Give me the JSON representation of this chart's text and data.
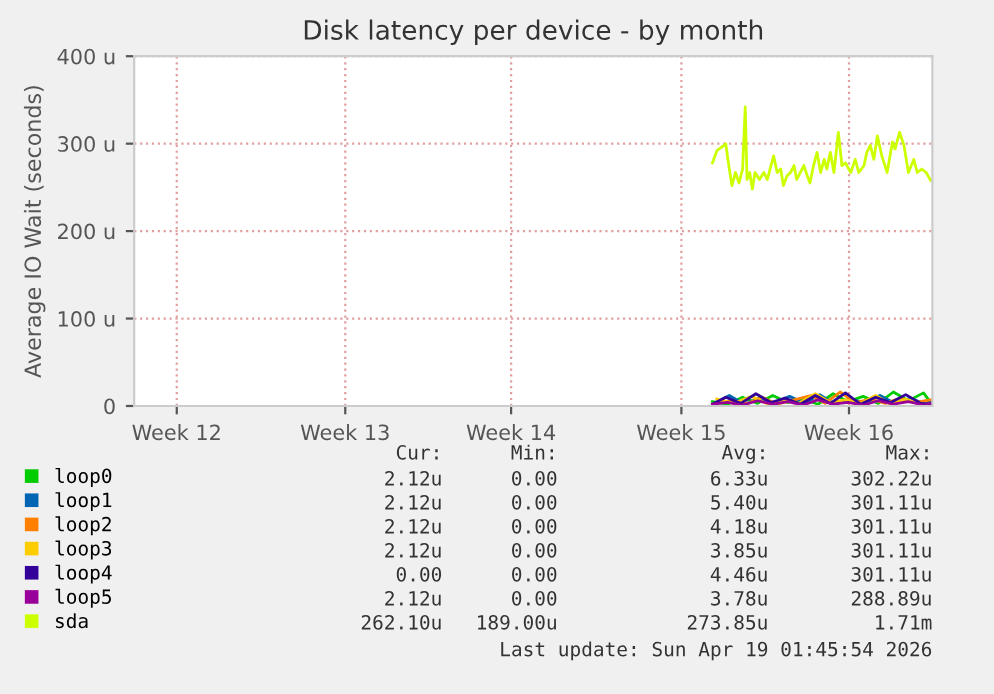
{
  "chart_data": {
    "type": "line",
    "title": "Disk latency per device - by month",
    "ylabel": "Average IO Wait (seconds)",
    "xlim": [
      "2026-03-12T12:00",
      "2026-04-19T00:00"
    ],
    "xticks": [
      {
        "value": "2026-03-14T12:00",
        "label": "Week 12"
      },
      {
        "value": "2026-03-22T10:00",
        "label": "Week 13"
      },
      {
        "value": "2026-03-30T05:00",
        "label": "Week 14"
      },
      {
        "value": "2026-04-07T05:00",
        "label": "Week 15"
      },
      {
        "value": "2026-04-15T02:00",
        "label": "Week 16"
      }
    ],
    "ylim": [
      0,
      400
    ],
    "yticks": [
      0,
      {
        "value": 100,
        "label": "100 u"
      },
      {
        "value": 200,
        "label": "200 u"
      },
      {
        "value": 300,
        "label": "300 u"
      },
      {
        "value": 400,
        "label": "400 u"
      }
    ],
    "grid": true,
    "legend": "bottom left",
    "series": [
      {
        "name": "loop0",
        "color": "#00cc00",
        "x": [
          "2026-04-08T16:00",
          "2026-04-09T09:00",
          "2026-04-10T02:00",
          "2026-04-10T19:00",
          "2026-04-11T12:00",
          "2026-04-12T05:00",
          "2026-04-12T22:00",
          "2026-04-13T15:00",
          "2026-04-14T08:00",
          "2026-04-15T01:00",
          "2026-04-15T18:00",
          "2026-04-16T11:00",
          "2026-04-17T04:00",
          "2026-04-17T21:00",
          "2026-04-18T14:00",
          "2026-04-18T22:00"
        ],
        "values": [
          5,
          2,
          10,
          3,
          12,
          4,
          8,
          2,
          14,
          5,
          11,
          3,
          16,
          6,
          15,
          4
        ]
      },
      {
        "name": "loop1",
        "color": "#0066b3",
        "x": [
          "2026-04-08T18:00",
          "2026-04-09T11:00",
          "2026-04-10T04:00",
          "2026-04-10T21:00",
          "2026-04-11T14:00",
          "2026-04-12T07:00",
          "2026-04-13T00:00",
          "2026-04-13T17:00",
          "2026-04-14T10:00",
          "2026-04-15T03:00",
          "2026-04-15T20:00",
          "2026-04-16T13:00",
          "2026-04-17T06:00",
          "2026-04-17T23:00",
          "2026-04-18T16:00",
          "2026-04-18T22:00"
        ],
        "values": [
          3,
          12,
          2,
          9,
          4,
          11,
          3,
          13,
          2,
          8,
          4,
          12,
          3,
          9,
          2,
          5
        ]
      },
      {
        "name": "loop2",
        "color": "#ff8000",
        "x": [
          "2026-04-08T16:00",
          "2026-04-09T14:00",
          "2026-04-10T08:00",
          "2026-04-11T00:00",
          "2026-04-11T17:00",
          "2026-04-12T12:00",
          "2026-04-13T07:00",
          "2026-04-13T23:00",
          "2026-04-14T16:00",
          "2026-04-15T09:00",
          "2026-04-16T02:00",
          "2026-04-16T19:00",
          "2026-04-17T12:00",
          "2026-04-18T05:00",
          "2026-04-18T22:00"
        ],
        "values": [
          2,
          6,
          3,
          10,
          2,
          7,
          12,
          3,
          16,
          4,
          8,
          3,
          9,
          4,
          7
        ]
      },
      {
        "name": "loop3",
        "color": "#ffcc00",
        "x": [
          "2026-04-08T21:00",
          "2026-04-09T16:00",
          "2026-04-10T12:00",
          "2026-04-11T07:00",
          "2026-04-12T00:00",
          "2026-04-12T17:00",
          "2026-04-13T12:00",
          "2026-04-14T05:00",
          "2026-04-14T22:00",
          "2026-04-15T15:00",
          "2026-04-16T08:00",
          "2026-04-17T01:00",
          "2026-04-17T18:00",
          "2026-04-18T11:00"
        ],
        "values": [
          8,
          3,
          11,
          2,
          6,
          3,
          14,
          4,
          7,
          3,
          12,
          2,
          8,
          3
        ]
      },
      {
        "name": "loop4",
        "color": "#330099",
        "x": [
          "2026-04-08T16:00",
          "2026-04-09T07:00",
          "2026-04-10T00:00",
          "2026-04-10T17:00",
          "2026-04-11T10:00",
          "2026-04-12T02:00",
          "2026-04-12T19:00",
          "2026-04-13T12:00",
          "2026-04-14T05:00",
          "2026-04-14T22:00",
          "2026-04-15T15:00",
          "2026-04-16T08:00",
          "2026-04-17T01:00",
          "2026-04-17T18:00",
          "2026-04-18T11:00",
          "2026-04-18T22:00"
        ],
        "values": [
          2,
          10,
          3,
          14,
          4,
          9,
          2,
          12,
          3,
          15,
          2,
          10,
          4,
          13,
          3,
          2
        ]
      },
      {
        "name": "loop5",
        "color": "#990099",
        "x": [
          "2026-04-08T16:00",
          "2026-04-09T09:00",
          "2026-04-10T02:00",
          "2026-04-10T19:00",
          "2026-04-11T12:00",
          "2026-04-12T05:00",
          "2026-04-12T22:00",
          "2026-04-13T15:00",
          "2026-04-14T08:00",
          "2026-04-15T01:00",
          "2026-04-15T18:00",
          "2026-04-16T11:00",
          "2026-04-17T04:00",
          "2026-04-17T21:00",
          "2026-04-18T14:00",
          "2026-04-18T22:00"
        ],
        "values": [
          2,
          4,
          1,
          6,
          2,
          5,
          1,
          7,
          2,
          4,
          1,
          6,
          2,
          5,
          1,
          3
        ]
      },
      {
        "name": "sda",
        "color": "#ccff00",
        "x": [
          "2026-04-08T16:00",
          "2026-04-08T21:00",
          "2026-04-09T05:00",
          "2026-04-09T07:00",
          "2026-04-09T10:00",
          "2026-04-09T14:00",
          "2026-04-09T18:00",
          "2026-04-09T22:00",
          "2026-04-10T02:00",
          "2026-04-10T05:00",
          "2026-04-10T07:00",
          "2026-04-10T10:00",
          "2026-04-10T13:00",
          "2026-04-10T16:00",
          "2026-04-10T21:00",
          "2026-04-11T02:00",
          "2026-04-11T06:00",
          "2026-04-11T09:00",
          "2026-04-11T13:00",
          "2026-04-11T17:00",
          "2026-04-11T21:00",
          "2026-04-12T00:00",
          "2026-04-12T04:00",
          "2026-04-12T08:00",
          "2026-04-12T12:00",
          "2026-04-12T15:00",
          "2026-04-12T19:00",
          "2026-04-12T23:00",
          "2026-04-13T03:00",
          "2026-04-13T06:00",
          "2026-04-13T10:00",
          "2026-04-13T14:00",
          "2026-04-13T18:00",
          "2026-04-13T22:00",
          "2026-04-14T01:00",
          "2026-04-14T05:00",
          "2026-04-14T09:00",
          "2026-04-14T14:00",
          "2026-04-14T18:00",
          "2026-04-14T22:00",
          "2026-04-15T04:00",
          "2026-04-15T09:00",
          "2026-04-15T13:00",
          "2026-04-15T19:00",
          "2026-04-15T22:00",
          "2026-04-16T02:00",
          "2026-04-16T06:00",
          "2026-04-16T10:00",
          "2026-04-16T15:00",
          "2026-04-16T21:00",
          "2026-04-17T03:00",
          "2026-04-17T06:00",
          "2026-04-17T11:00",
          "2026-04-17T16:00",
          "2026-04-17T21:00",
          "2026-04-18T03:00",
          "2026-04-18T07:00",
          "2026-04-18T12:00",
          "2026-04-18T17:00",
          "2026-04-18T22:00"
        ],
        "values": [
          278,
          292,
          298,
          300,
          278,
          252,
          267,
          255,
          271,
          342,
          259,
          267,
          248,
          267,
          259,
          267,
          259,
          271,
          286,
          267,
          271,
          252,
          263,
          267,
          275,
          259,
          267,
          275,
          263,
          255,
          275,
          290,
          267,
          282,
          271,
          290,
          267,
          313,
          275,
          278,
          267,
          282,
          267,
          275,
          290,
          298,
          282,
          309,
          286,
          267,
          302,
          294,
          313,
          298,
          267,
          282,
          267,
          271,
          267,
          258
        ]
      }
    ],
    "annotations": [
      "Cur:",
      "Min:",
      "Avg:",
      "Max:",
      "2.12u",
      "0.00",
      "6.33u",
      "302.22u",
      "2.12u",
      "0.00",
      "5.40u",
      "301.11u",
      "2.12u",
      "0.00",
      "4.18u",
      "301.11u",
      "2.12u",
      "0.00",
      "3.85u",
      "301.11u",
      "0.00",
      "0.00",
      "4.46u",
      "301.11u",
      "2.12u",
      "0.00",
      "3.78u",
      "288.89u",
      "262.10u",
      "189.00u",
      "273.85u",
      "1.71m",
      "Last update: Sun Apr 19 01:45:54 2026"
    ]
  }
}
